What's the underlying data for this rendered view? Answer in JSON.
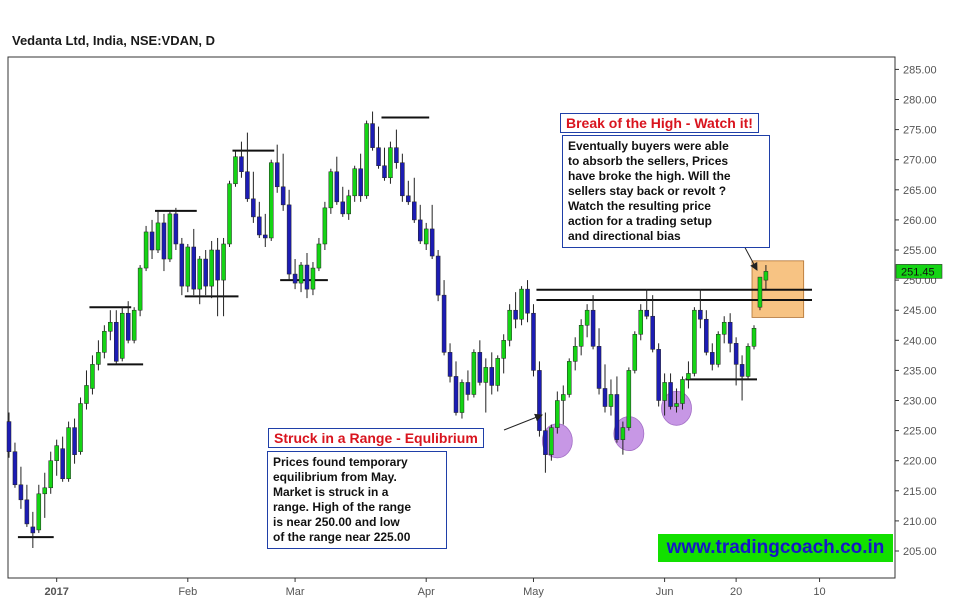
{
  "title": "Vedanta Ltd, India, NSE:VDAN, D",
  "chart_data": {
    "type": "candlestick",
    "ylim": [
      200,
      288
    ],
    "y_ticks": [
      205,
      210,
      215,
      220,
      225,
      230,
      235,
      240,
      245,
      250,
      255,
      260,
      265,
      270,
      275,
      280,
      285
    ],
    "y_tick_labels": [
      "205.00",
      "210.00",
      "215.00",
      "220.00",
      "225.00",
      "230.00",
      "235.00",
      "240.00",
      "245.00",
      "250.00",
      "255.00",
      "260.00",
      "265.00",
      "270.00",
      "275.00",
      "280.00",
      "285.00"
    ],
    "x_tick_labels": [
      {
        "label": "2017",
        "bar": 8
      },
      {
        "label": "Feb",
        "bar": 30
      },
      {
        "label": "Mar",
        "bar": 48
      },
      {
        "label": "Apr",
        "bar": 70
      },
      {
        "label": "May",
        "bar": 88
      },
      {
        "label": "Jun",
        "bar": 110
      },
      {
        "label": "20",
        "bar": 122
      },
      {
        "label": "10",
        "bar": 136
      }
    ],
    "last_price_label": "251.45",
    "last_price": 251.45,
    "candles": [
      [
        226.5,
        228.0,
        220.5,
        221.5
      ],
      [
        221.5,
        223.0,
        215.5,
        216.0
      ],
      [
        216.0,
        219.0,
        212.0,
        213.5
      ],
      [
        213.5,
        216.0,
        209.0,
        209.5
      ],
      [
        209.0,
        211.5,
        205.5,
        208.0
      ],
      [
        208.5,
        216.0,
        208.0,
        214.5
      ],
      [
        214.5,
        218.0,
        210.5,
        215.5
      ],
      [
        215.5,
        221.5,
        214.5,
        220.0
      ],
      [
        220.0,
        223.5,
        217.5,
        222.5
      ],
      [
        222.0,
        224.0,
        216.5,
        217.0
      ],
      [
        217.0,
        226.5,
        216.5,
        225.5
      ],
      [
        225.5,
        227.0,
        219.5,
        221.0
      ],
      [
        221.5,
        230.5,
        221.0,
        229.5
      ],
      [
        229.5,
        235.0,
        228.5,
        232.5
      ],
      [
        232.0,
        237.5,
        231.0,
        236.0
      ],
      [
        236.0,
        240.0,
        235.0,
        238.0
      ],
      [
        238.0,
        242.5,
        237.0,
        241.5
      ],
      [
        241.5,
        245.0,
        240.0,
        243.0
      ],
      [
        243.0,
        245.0,
        236.0,
        236.5
      ],
      [
        237.0,
        245.5,
        236.5,
        244.5
      ],
      [
        244.5,
        246.5,
        239.5,
        240.0
      ],
      [
        240.0,
        245.5,
        239.5,
        245.0
      ],
      [
        245.0,
        252.5,
        244.0,
        252.0
      ],
      [
        252.0,
        259.0,
        251.5,
        258.0
      ],
      [
        258.0,
        260.0,
        253.5,
        255.0
      ],
      [
        255.0,
        261.5,
        254.5,
        259.5
      ],
      [
        259.5,
        261.0,
        251.5,
        253.5
      ],
      [
        253.5,
        261.5,
        253.0,
        261.0
      ],
      [
        261.0,
        262.0,
        255.0,
        256.0
      ],
      [
        256.0,
        257.0,
        247.5,
        249.0
      ],
      [
        249.0,
        256.0,
        248.0,
        255.5
      ],
      [
        255.5,
        258.5,
        247.5,
        248.5
      ],
      [
        248.5,
        254.0,
        246.0,
        253.5
      ],
      [
        253.5,
        255.0,
        247.5,
        249.0
      ],
      [
        249.0,
        256.5,
        247.0,
        255.0
      ],
      [
        255.0,
        257.0,
        244.0,
        250.0
      ],
      [
        250.0,
        257.0,
        244.0,
        256.0
      ],
      [
        256.0,
        266.5,
        255.5,
        266.0
      ],
      [
        266.0,
        271.5,
        265.5,
        270.5
      ],
      [
        270.5,
        273.0,
        267.0,
        268.0
      ],
      [
        268.0,
        274.5,
        263.0,
        263.5
      ],
      [
        263.5,
        268.0,
        259.5,
        260.5
      ],
      [
        260.5,
        263.0,
        257.0,
        257.5
      ],
      [
        257.5,
        261.0,
        255.5,
        257.0
      ],
      [
        257.0,
        270.0,
        256.5,
        269.5
      ],
      [
        269.5,
        272.5,
        264.5,
        265.5
      ],
      [
        265.5,
        271.0,
        261.5,
        262.5
      ],
      [
        262.5,
        265.0,
        250.0,
        251.0
      ],
      [
        251.0,
        253.5,
        248.5,
        249.5
      ],
      [
        249.5,
        253.0,
        248.0,
        252.5
      ],
      [
        252.5,
        254.5,
        247.0,
        248.5
      ],
      [
        248.5,
        253.0,
        247.5,
        252.0
      ],
      [
        252.0,
        257.0,
        251.5,
        256.0
      ],
      [
        256.0,
        263.0,
        255.0,
        262.0
      ],
      [
        262.0,
        268.5,
        261.0,
        268.0
      ],
      [
        268.0,
        270.5,
        262.5,
        263.0
      ],
      [
        263.0,
        265.5,
        260.5,
        261.0
      ],
      [
        261.0,
        265.0,
        260.0,
        264.0
      ],
      [
        264.0,
        269.0,
        263.0,
        268.5
      ],
      [
        268.5,
        271.0,
        263.0,
        264.0
      ],
      [
        264.0,
        276.5,
        263.5,
        276.0
      ],
      [
        276.0,
        278.0,
        271.5,
        272.0
      ],
      [
        272.0,
        275.5,
        268.5,
        269.0
      ],
      [
        269.0,
        272.0,
        266.5,
        267.0
      ],
      [
        267.0,
        273.0,
        266.0,
        272.0
      ],
      [
        272.0,
        275.0,
        268.5,
        269.5
      ],
      [
        269.5,
        271.0,
        263.0,
        264.0
      ],
      [
        264.0,
        266.5,
        262.5,
        263.0
      ],
      [
        263.0,
        267.0,
        259.5,
        260.0
      ],
      [
        260.0,
        262.5,
        256.0,
        256.5
      ],
      [
        256.0,
        259.5,
        255.0,
        258.5
      ],
      [
        258.5,
        262.5,
        253.5,
        254.0
      ],
      [
        254.0,
        255.0,
        246.5,
        247.5
      ],
      [
        247.5,
        250.0,
        237.5,
        238.0
      ],
      [
        238.0,
        239.5,
        233.0,
        234.0
      ],
      [
        234.0,
        236.5,
        227.5,
        228.0
      ],
      [
        228.0,
        233.5,
        227.0,
        233.0
      ],
      [
        233.0,
        235.0,
        230.0,
        231.0
      ],
      [
        231.0,
        238.5,
        230.5,
        238.0
      ],
      [
        238.0,
        240.0,
        232.5,
        233.0
      ],
      [
        233.0,
        237.0,
        228.0,
        235.5
      ],
      [
        235.5,
        238.0,
        231.0,
        232.5
      ],
      [
        232.5,
        237.5,
        231.5,
        237.0
      ],
      [
        237.0,
        241.0,
        234.5,
        240.0
      ],
      [
        240.0,
        246.0,
        239.0,
        245.0
      ],
      [
        245.0,
        248.0,
        242.0,
        243.5
      ],
      [
        243.5,
        249.0,
        242.5,
        248.5
      ],
      [
        248.5,
        250.0,
        243.0,
        244.5
      ],
      [
        244.5,
        246.0,
        234.0,
        235.0
      ],
      [
        235.0,
        236.5,
        224.0,
        225.0
      ],
      [
        225.0,
        228.0,
        218.0,
        221.0
      ],
      [
        221.0,
        226.0,
        220.0,
        225.5
      ],
      [
        225.5,
        231.5,
        224.5,
        230.0
      ],
      [
        230.0,
        232.5,
        226.0,
        231.0
      ],
      [
        231.0,
        237.0,
        230.5,
        236.5
      ],
      [
        236.5,
        240.5,
        235.0,
        239.0
      ],
      [
        239.0,
        243.5,
        237.5,
        242.5
      ],
      [
        242.5,
        246.0,
        240.5,
        245.0
      ],
      [
        245.0,
        247.5,
        238.5,
        239.0
      ],
      [
        239.0,
        242.0,
        231.0,
        232.0
      ],
      [
        232.0,
        236.0,
        228.0,
        229.0
      ],
      [
        229.0,
        233.5,
        227.5,
        231.0
      ],
      [
        231.0,
        234.0,
        223.0,
        223.5
      ],
      [
        223.5,
        226.5,
        221.0,
        225.5
      ],
      [
        225.5,
        235.5,
        225.0,
        235.0
      ],
      [
        235.0,
        241.5,
        234.5,
        241.0
      ],
      [
        241.0,
        246.0,
        240.0,
        245.0
      ],
      [
        245.0,
        248.5,
        243.5,
        244.0
      ],
      [
        244.0,
        247.5,
        238.0,
        238.5
      ],
      [
        238.5,
        239.5,
        229.0,
        230.0
      ],
      [
        230.0,
        234.5,
        227.5,
        233.0
      ],
      [
        233.0,
        234.5,
        228.5,
        229.0
      ],
      [
        229.0,
        232.0,
        228.0,
        229.5
      ],
      [
        229.5,
        234.0,
        228.5,
        233.5
      ],
      [
        233.5,
        236.5,
        232.0,
        234.5
      ],
      [
        234.5,
        245.5,
        234.0,
        245.0
      ],
      [
        245.0,
        248.5,
        242.0,
        243.5
      ],
      [
        243.5,
        245.0,
        237.5,
        238.0
      ],
      [
        238.0,
        239.5,
        235.0,
        236.0
      ],
      [
        236.0,
        241.5,
        235.5,
        241.0
      ],
      [
        241.0,
        244.0,
        239.5,
        243.0
      ],
      [
        243.0,
        244.5,
        238.0,
        239.5
      ],
      [
        239.5,
        240.5,
        232.5,
        236.0
      ],
      [
        236.0,
        237.5,
        230.0,
        234.0
      ],
      [
        234.0,
        239.5,
        233.5,
        239.0
      ],
      [
        239.0,
        242.5,
        238.5,
        242.0
      ],
      [
        245.5,
        250.5,
        245.0,
        250.5
      ],
      [
        250.0,
        252.5,
        248.5,
        251.45
      ]
    ],
    "horizontal_lines": [
      {
        "value": 207.3,
        "from_bar": 2,
        "to_bar": 7
      },
      {
        "value": 245.5,
        "from_bar": 14,
        "to_bar": 20
      },
      {
        "value": 236.0,
        "from_bar": 17,
        "to_bar": 22
      },
      {
        "value": 261.5,
        "from_bar": 25,
        "to_bar": 31
      },
      {
        "value": 247.3,
        "from_bar": 30,
        "to_bar": 38
      },
      {
        "value": 271.5,
        "from_bar": 38,
        "to_bar": 44
      },
      {
        "value": 250.0,
        "from_bar": 46,
        "to_bar": 53
      },
      {
        "value": 277.0,
        "from_bar": 63,
        "to_bar": 70
      },
      {
        "value": 233.5,
        "from_bar": 114,
        "to_bar": 125
      },
      {
        "value": 248.4,
        "from_bar": 89,
        "to_bar": 130,
        "to_edge": true
      },
      {
        "value": 246.7,
        "from_bar": 89,
        "to_bar": 130,
        "to_edge": true
      }
    ],
    "highlight_box": {
      "from_bar": 125,
      "to_bar": 133,
      "y_low": 243.8,
      "y_high": 253.2
    },
    "range_circles": [
      {
        "bar": 92,
        "value": 223.3
      },
      {
        "bar": 104,
        "value": 224.5
      },
      {
        "bar": 112,
        "value": 228.7
      }
    ]
  },
  "annotations": {
    "range": {
      "title": "Struck in a Range - Equlibrium",
      "lines": [
        "Prices found temporary",
        "equilibrium from May.",
        "Market is struck in a",
        "range. High of the range",
        "is near 250.00 and low",
        "of the range near 225.00"
      ]
    },
    "breakout": {
      "title": "Break of the High - Watch it!",
      "lines": [
        "Eventually buyers were able",
        "to absorb the sellers, Prices",
        "have broke the high. Will the",
        "sellers stay back or revolt ?",
        "Watch the resulting price",
        "action for a trading setup",
        "and directional bias"
      ]
    }
  },
  "website": "www.tradingcoach.co.in",
  "colors": {
    "up_candle": "#14d414",
    "down_candle": "#1c1cb4",
    "highlight_box": "#f7c383",
    "range_circle": "#c18ce3",
    "axis_label": "#555555"
  }
}
